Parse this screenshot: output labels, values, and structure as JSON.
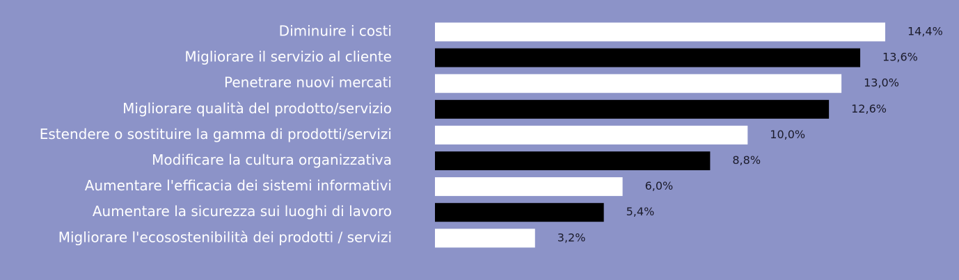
{
  "chart_data": {
    "type": "bar",
    "orientation": "horizontal",
    "categories": [
      "Diminuire i costi",
      "Migliorare il servizio al cliente",
      "Penetrare nuovi mercati",
      "Migliorare qualità del prodotto/servizio",
      "Estendere o sostituire la gamma di prodotti/servizi",
      "Modificare la cultura organizzativa",
      "Aumentare l'efficacia dei sistemi informativi",
      "Aumentare la sicurezza sui luoghi di lavoro",
      "Migliorare l'ecosostenibilità dei prodotti / servizi"
    ],
    "values": [
      14.4,
      13.6,
      13.0,
      12.6,
      10.0,
      8.8,
      6.0,
      5.4,
      3.2
    ],
    "value_labels": [
      "14,4%",
      "13,6%",
      "13,0%",
      "12,6%",
      "10,0%",
      "8,8%",
      "6,0%",
      "5,4%",
      "3,2%"
    ],
    "colors": [
      "#ffffff",
      "#000000",
      "#ffffff",
      "#000000",
      "#ffffff",
      "#000000",
      "#ffffff",
      "#000000",
      "#ffffff"
    ]
  }
}
